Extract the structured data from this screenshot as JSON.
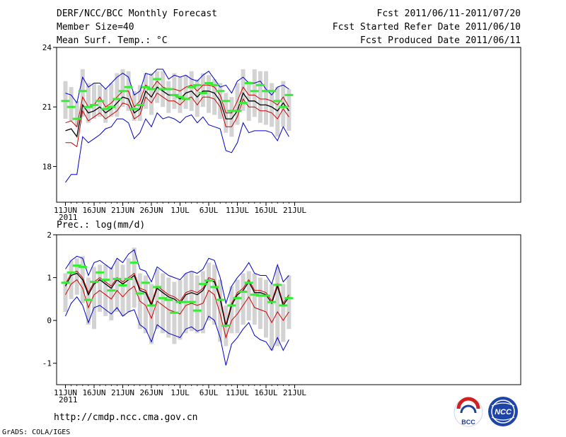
{
  "header": {
    "title": "DERF/NCC/BCC Monthly Forecast",
    "member_size": "Member Size=40",
    "variable": "Mean Surf. Temp.: °C",
    "forecast_period": "Fcst 2011/06/11-2011/07/20",
    "started_refer_date": "Fcst Started Refer Date 2011/06/10",
    "produced_date": "Fcst Produced Date 2011/06/11"
  },
  "footer": {
    "url": "http://cmdp.ncc.cma.gov.cn",
    "credit": "GrADS: COLA/IGES",
    "logo_bcc": "BCC",
    "logo_ncc": "NCC"
  },
  "colors": {
    "ensemble_mean": "#000000",
    "spread_inner": "#cc0000",
    "spread_outer": "#0000cc",
    "box": "#d3d3d3",
    "marker": "#33ee33"
  },
  "chart_data": [
    {
      "type": "line",
      "title": "Mean Surf. Temp.: °C",
      "ylabel": "°C",
      "ylim": [
        16.2,
        24
      ],
      "yticks": [
        18,
        21,
        24
      ],
      "x_tick_labels": [
        "11JUN",
        "16JUN",
        "21JUN",
        "26JUN",
        "1JUL",
        "6JUL",
        "11JUL",
        "16JUL",
        "21JUL"
      ],
      "x_tick_index": [
        0,
        5,
        10,
        15,
        20,
        25,
        30,
        35,
        40
      ],
      "year_label": "2011",
      "series": [
        {
          "name": "ensemble_mean",
          "values": [
            19.8,
            19.9,
            19.5,
            21.1,
            20.7,
            20.8,
            21.0,
            20.7,
            20.9,
            21.2,
            21.5,
            21.4,
            20.7,
            20.9,
            21.8,
            21.5,
            22.0,
            21.8,
            21.6,
            21.6,
            21.4,
            21.7,
            21.8,
            21.5,
            21.8,
            21.8,
            21.7,
            21.3,
            20.4,
            20.4,
            20.8,
            21.7,
            21.3,
            21.3,
            21.1,
            21.1,
            21.0,
            20.8,
            21.2,
            20.8
          ]
        },
        {
          "name": "upper_inner",
          "values": [
            20.2,
            20.3,
            20.0,
            21.5,
            21.0,
            21.1,
            21.5,
            21.0,
            21.2,
            21.5,
            21.8,
            21.8,
            21.0,
            21.3,
            22.1,
            21.9,
            22.3,
            22.0,
            21.9,
            21.9,
            21.8,
            22.0,
            22.1,
            21.8,
            22.1,
            22.1,
            22.0,
            21.6,
            20.7,
            20.7,
            21.3,
            22.0,
            21.6,
            21.6,
            21.4,
            21.4,
            21.3,
            21.1,
            21.5,
            21.0
          ]
        },
        {
          "name": "lower_inner",
          "values": [
            19.2,
            19.2,
            19.0,
            20.8,
            20.3,
            20.5,
            20.7,
            20.4,
            20.6,
            20.8,
            21.2,
            21.1,
            20.4,
            20.6,
            21.5,
            21.2,
            21.7,
            21.5,
            21.3,
            21.3,
            21.1,
            21.4,
            21.5,
            21.1,
            21.5,
            21.5,
            21.4,
            21.0,
            20.0,
            20.0,
            20.5,
            21.4,
            21.0,
            21.0,
            20.8,
            20.8,
            20.7,
            20.4,
            20.9,
            20.5
          ]
        },
        {
          "name": "upper_outer",
          "values": [
            21.7,
            21.6,
            21.2,
            22.5,
            22.0,
            22.2,
            22.2,
            21.9,
            22.2,
            22.5,
            22.7,
            22.5,
            21.6,
            21.8,
            22.7,
            22.6,
            22.9,
            22.9,
            22.4,
            22.6,
            22.5,
            22.6,
            22.4,
            22.3,
            22.6,
            22.8,
            22.4,
            22.0,
            22.1,
            21.7,
            22.3,
            22.5,
            22.2,
            22.2,
            22.3,
            21.9,
            21.6,
            22.0,
            22.1,
            21.9
          ]
        },
        {
          "name": "lower_outer",
          "values": [
            17.2,
            17.6,
            17.6,
            19.5,
            19.2,
            19.4,
            19.6,
            19.9,
            20.0,
            20.4,
            20.4,
            20.2,
            19.4,
            19.7,
            20.4,
            20.0,
            20.7,
            20.4,
            20.5,
            20.4,
            20.2,
            20.5,
            20.6,
            20.2,
            20.5,
            20.1,
            20.0,
            19.9,
            18.8,
            18.7,
            19.2,
            20.2,
            19.7,
            19.8,
            19.8,
            19.8,
            19.7,
            19.3,
            20.0,
            19.5
          ]
        },
        {
          "name": "box_top",
          "values": [
            22.3,
            22.0,
            21.3,
            22.9,
            22.2,
            22.2,
            22.1,
            21.9,
            22.2,
            22.7,
            22.9,
            22.8,
            21.8,
            22.1,
            22.7,
            22.7,
            22.8,
            22.8,
            22.3,
            22.7,
            22.5,
            22.6,
            22.8,
            22.4,
            22.7,
            22.6,
            22.4,
            22.2,
            21.7,
            21.5,
            22.2,
            22.9,
            22.3,
            22.9,
            22.8,
            22.8,
            22.2,
            22.0,
            22.3,
            21.9
          ]
        },
        {
          "name": "box_bottom",
          "values": [
            20.4,
            20.3,
            20.0,
            20.5,
            20.2,
            20.4,
            20.5,
            20.2,
            20.5,
            20.5,
            21.0,
            20.8,
            20.3,
            20.3,
            20.9,
            20.6,
            21.2,
            21.0,
            20.7,
            20.9,
            20.7,
            20.9,
            20.8,
            20.5,
            21.0,
            20.7,
            20.6,
            20.4,
            19.7,
            19.5,
            20.1,
            20.8,
            20.3,
            20.5,
            20.2,
            20.1,
            20.0,
            19.5,
            20.0,
            19.8
          ]
        },
        {
          "name": "marker",
          "values": [
            21.3,
            21.0,
            20.4,
            21.8,
            21.0,
            21.1,
            21.3,
            20.9,
            21.0,
            21.4,
            21.8,
            22.0,
            20.9,
            21.1,
            22.0,
            21.9,
            22.4,
            21.9,
            21.9,
            21.6,
            21.5,
            21.4,
            22.0,
            22.1,
            21.7,
            22.2,
            22.1,
            21.8,
            21.3,
            20.8,
            20.8,
            21.2,
            22.2,
            21.8,
            22.1,
            21.8,
            21.8,
            21.3,
            21.0,
            21.6
          ]
        }
      ]
    },
    {
      "type": "line",
      "title": "Prec.: log(mm/d)",
      "ylabel": "log(mm/d)",
      "ylim": [
        -1.5,
        2
      ],
      "yticks": [
        -1,
        0,
        1,
        2
      ],
      "x_tick_labels": [
        "11JUN",
        "16JUN",
        "21JUN",
        "26JUN",
        "1JUL",
        "6JUL",
        "11JUL",
        "16JUL",
        "21JUL"
      ],
      "x_tick_index": [
        0,
        5,
        10,
        15,
        20,
        25,
        30,
        35,
        40
      ],
      "year_label": "2011",
      "series": [
        {
          "name": "ensemble_mean",
          "values": [
            0.8,
            1.05,
            1.1,
            0.95,
            0.6,
            0.85,
            0.95,
            0.85,
            0.75,
            0.95,
            0.85,
            0.95,
            1.05,
            0.7,
            0.65,
            0.35,
            0.75,
            0.65,
            0.55,
            0.5,
            0.4,
            0.6,
            0.65,
            0.6,
            0.7,
            0.95,
            0.9,
            0.5,
            -0.15,
            0.35,
            0.6,
            0.7,
            0.9,
            0.65,
            0.65,
            0.6,
            0.4,
            0.8,
            0.35,
            0.55
          ]
        },
        {
          "name": "upper_inner",
          "values": [
            0.85,
            1.1,
            1.15,
            1.0,
            0.65,
            0.9,
            1.0,
            0.9,
            0.8,
            1.0,
            0.9,
            1.0,
            1.1,
            0.75,
            0.7,
            0.4,
            0.8,
            0.7,
            0.6,
            0.55,
            0.45,
            0.65,
            0.7,
            0.65,
            0.75,
            1.0,
            0.95,
            0.55,
            -0.1,
            0.4,
            0.65,
            0.75,
            0.95,
            0.7,
            0.7,
            0.65,
            0.45,
            0.85,
            0.4,
            0.6
          ]
        },
        {
          "name": "lower_inner",
          "values": [
            0.6,
            0.85,
            0.95,
            0.75,
            0.3,
            0.6,
            0.7,
            0.6,
            0.5,
            0.7,
            0.55,
            0.7,
            0.8,
            0.45,
            0.35,
            0.05,
            0.45,
            0.35,
            0.25,
            0.2,
            0.15,
            0.35,
            0.4,
            0.35,
            0.4,
            0.7,
            0.6,
            0.15,
            -0.4,
            0.0,
            0.15,
            0.35,
            0.55,
            0.3,
            0.25,
            0.2,
            -0.05,
            0.2,
            0.0,
            0.2
          ]
        },
        {
          "name": "upper_outer",
          "values": [
            1.2,
            1.4,
            1.5,
            1.45,
            1.05,
            1.35,
            1.4,
            1.3,
            1.2,
            1.45,
            1.35,
            1.55,
            1.65,
            1.2,
            1.15,
            0.9,
            1.25,
            1.15,
            1.05,
            1.0,
            0.95,
            1.1,
            1.15,
            1.1,
            1.2,
            1.45,
            1.4,
            1.0,
            0.4,
            0.8,
            1.0,
            1.15,
            1.35,
            1.1,
            1.05,
            1.05,
            0.85,
            1.3,
            0.9,
            1.05
          ]
        },
        {
          "name": "lower_outer",
          "values": [
            0.1,
            0.4,
            0.55,
            0.35,
            -0.05,
            0.3,
            0.35,
            0.25,
            0.15,
            0.3,
            0.1,
            0.2,
            0.25,
            -0.1,
            -0.2,
            -0.5,
            -0.1,
            -0.2,
            -0.3,
            -0.35,
            -0.4,
            -0.2,
            -0.15,
            -0.25,
            -0.2,
            0.1,
            0.0,
            -0.4,
            -1.05,
            -0.55,
            -0.4,
            -0.2,
            -0.05,
            -0.35,
            -0.45,
            -0.5,
            -0.7,
            -0.4,
            -0.7,
            -0.45
          ]
        },
        {
          "name": "box_top",
          "values": [
            1.1,
            1.4,
            1.45,
            1.5,
            1.0,
            1.25,
            1.3,
            1.3,
            1.25,
            1.4,
            1.3,
            1.45,
            1.7,
            1.1,
            1.05,
            0.85,
            1.2,
            1.1,
            1.0,
            0.9,
            0.95,
            1.1,
            1.15,
            1.05,
            1.15,
            1.35,
            1.3,
            0.95,
            0.35,
            0.8,
            0.95,
            1.1,
            1.15,
            1.1,
            1.0,
            0.95,
            0.85,
            1.25,
            0.85,
            1.05
          ]
        },
        {
          "name": "box_bottom",
          "values": [
            0.2,
            0.5,
            0.6,
            0.4,
            -0.1,
            -0.2,
            0.2,
            0.1,
            0.0,
            0.2,
            0.1,
            0.2,
            0.3,
            -0.2,
            -0.3,
            -0.55,
            -0.2,
            -0.3,
            -0.4,
            -0.55,
            -0.45,
            -0.3,
            -0.25,
            -0.3,
            -0.3,
            0.0,
            -0.1,
            -0.5,
            -0.6,
            -0.3,
            -0.3,
            -0.1,
            0.0,
            -0.1,
            -0.2,
            -0.4,
            -0.7,
            -0.6,
            -0.5,
            -0.2
          ]
        },
        {
          "name": "marker",
          "values": [
            0.88,
            1.12,
            1.28,
            1.25,
            0.48,
            0.9,
            1.12,
            0.95,
            0.7,
            0.97,
            0.82,
            0.97,
            1.35,
            0.63,
            0.88,
            0.35,
            0.78,
            0.52,
            0.48,
            0.18,
            0.43,
            0.43,
            0.43,
            0.23,
            0.85,
            0.93,
            0.78,
            0.48,
            -0.12,
            0.35,
            0.52,
            0.67,
            0.88,
            0.6,
            0.58,
            0.58,
            0.43,
            0.83,
            0.35,
            0.52
          ]
        }
      ]
    }
  ]
}
